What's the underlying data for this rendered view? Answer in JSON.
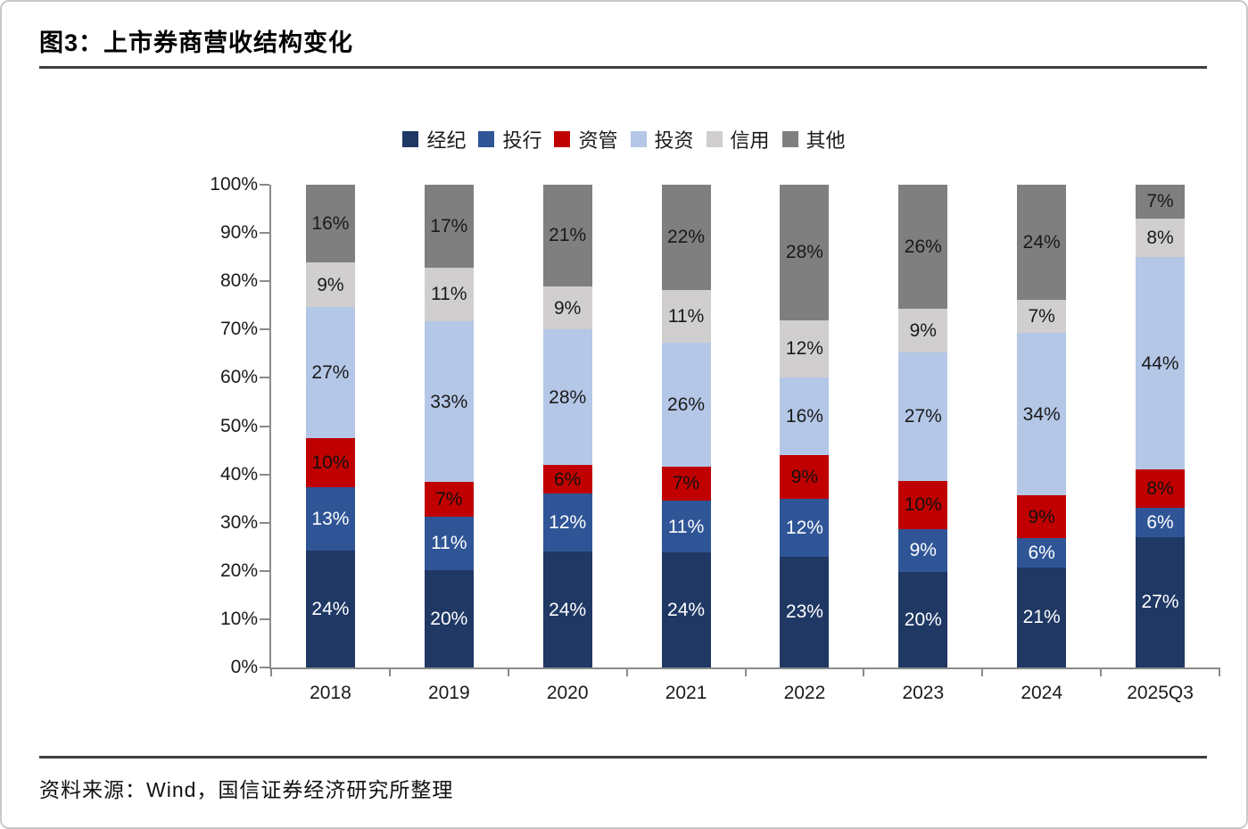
{
  "figure": {
    "title": "图3：上市券商营收结构变化",
    "source": "资料来源：Wind，国信证券经济研究所整理"
  },
  "chart_data": {
    "type": "bar",
    "stacked": true,
    "title": "上市券商营收结构变化",
    "xlabel": "",
    "ylabel": "",
    "ylim": [
      0,
      100
    ],
    "grid": false,
    "legend_position": "top-center",
    "value_suffix": "%",
    "y_ticks": [
      "0%",
      "10%",
      "20%",
      "30%",
      "40%",
      "50%",
      "60%",
      "70%",
      "80%",
      "90%",
      "100%"
    ],
    "categories": [
      "2018",
      "2019",
      "2020",
      "2021",
      "2022",
      "2023",
      "2024",
      "2025Q3"
    ],
    "series": [
      {
        "name": "经纪",
        "color": "#1F3864",
        "label_color": "#ffffff",
        "values": [
          24,
          20,
          24,
          24,
          23,
          20,
          21,
          27
        ]
      },
      {
        "name": "投行",
        "color": "#2F5597",
        "label_color": "#ffffff",
        "values": [
          13,
          11,
          12,
          11,
          12,
          9,
          6,
          6
        ]
      },
      {
        "name": "资管",
        "color": "#C00000",
        "label_color": "#111111",
        "values": [
          10,
          7,
          6,
          7,
          9,
          10,
          9,
          8
        ]
      },
      {
        "name": "投资",
        "color": "#B4C7E7",
        "label_color": "#1a1a1a",
        "values": [
          27,
          33,
          28,
          26,
          16,
          27,
          34,
          44
        ]
      },
      {
        "name": "信用",
        "color": "#D0CECE",
        "label_color": "#1a1a1a",
        "values": [
          9,
          11,
          9,
          11,
          12,
          9,
          7,
          8
        ]
      },
      {
        "name": "其他",
        "color": "#7F7F7F",
        "label_color": "#1a1a1a",
        "values": [
          16,
          17,
          21,
          22,
          28,
          26,
          24,
          7
        ]
      }
    ]
  }
}
